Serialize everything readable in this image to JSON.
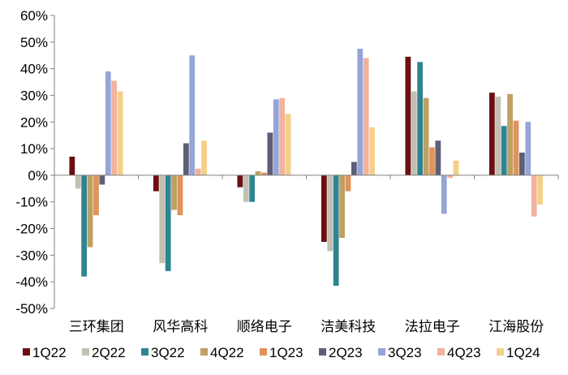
{
  "chart_data": {
    "type": "bar",
    "title": "",
    "xlabel": "",
    "ylabel": "",
    "ylim": [
      -50,
      60
    ],
    "yticks": [
      60,
      50,
      40,
      30,
      20,
      10,
      0,
      -10,
      -20,
      -30,
      -40,
      -50
    ],
    "ytick_labels": [
      "60%",
      "50%",
      "40%",
      "30%",
      "20%",
      "10%",
      "0%",
      "-10%",
      "-20%",
      "-30%",
      "-40%",
      "-50%"
    ],
    "grid": false,
    "legend_position": "bottom",
    "categories": [
      "三环集团",
      "风华高科",
      "顺络电子",
      "洁美科技",
      "法拉电子",
      "江海股份"
    ],
    "series": [
      {
        "name": "1Q22",
        "color": "#6b0f12",
        "values": [
          7,
          -6,
          -4.5,
          -25,
          44.5,
          31
        ]
      },
      {
        "name": "2Q22",
        "color": "#c2c0b3",
        "values": [
          -5,
          -33,
          -10,
          -28.5,
          31.5,
          29.5
        ]
      },
      {
        "name": "3Q22",
        "color": "#2e8490",
        "values": [
          -38,
          -36,
          -10,
          -41.5,
          42.5,
          18.5
        ]
      },
      {
        "name": "4Q22",
        "color": "#bfa062",
        "values": [
          -27,
          -13,
          1.5,
          -23.5,
          29,
          30.5
        ]
      },
      {
        "name": "1Q23",
        "color": "#e0935b",
        "values": [
          -15,
          -15,
          1,
          -6,
          10.5,
          20.5
        ]
      },
      {
        "name": "2Q23",
        "color": "#5d5f76",
        "values": [
          -3.5,
          12,
          16,
          5,
          13,
          8.5
        ]
      },
      {
        "name": "3Q23",
        "color": "#96a5d8",
        "values": [
          39,
          45,
          28.5,
          47.5,
          -14.5,
          20
        ]
      },
      {
        "name": "4Q23",
        "color": "#f2b29d",
        "values": [
          35.5,
          2.5,
          29,
          44,
          -1,
          -15.5
        ]
      },
      {
        "name": "1Q24",
        "color": "#f5d08a",
        "values": [
          31.5,
          13,
          23,
          18,
          5.5,
          -11
        ]
      }
    ]
  }
}
